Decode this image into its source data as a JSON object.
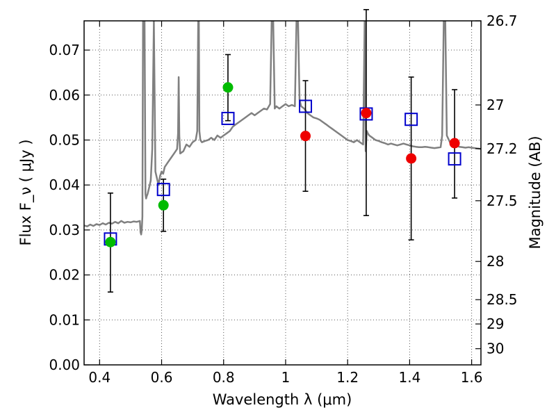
{
  "chart_data": {
    "type": "scatter",
    "title": "",
    "xlabel": "Wavelength  λ (μm)",
    "ylabel": "Flux  F_ν  ( μJy )",
    "ylabel_right": "Magnitude (AB)",
    "xlim": [
      0.35,
      1.63
    ],
    "ylim": [
      0.0,
      0.0765
    ],
    "grid": true,
    "x_ticks": [
      0.4,
      0.6,
      0.8,
      1.0,
      1.2,
      1.4,
      1.6
    ],
    "x_tick_labels": [
      "0.4",
      "0.6",
      "0.8",
      "1",
      "1.2",
      "1.4",
      "1.6"
    ],
    "y_ticks": [
      0.0,
      0.01,
      0.02,
      0.03,
      0.04,
      0.05,
      0.06,
      0.07
    ],
    "y_tick_labels": [
      "0.00",
      "0.01",
      "0.02",
      "0.03",
      "0.04",
      "0.05",
      "0.06",
      "0.07"
    ],
    "right_ticks": [
      {
        "label": "26.7",
        "flux": 0.0765
      },
      {
        "label": "27",
        "flux": 0.0578
      },
      {
        "label": "27.2",
        "flux": 0.0481
      },
      {
        "label": "27.5",
        "flux": 0.0365
      },
      {
        "label": "28",
        "flux": 0.023
      },
      {
        "label": "28.5",
        "flux": 0.0145
      },
      {
        "label": "29",
        "flux": 0.0091
      },
      {
        "label": "30",
        "flux": 0.0036
      }
    ],
    "colors": {
      "model": "#808080",
      "green": "#00bb00",
      "red": "#ee0000",
      "square": "#0000cc",
      "errorbar": "#000000",
      "grid": "#555555"
    },
    "series": [
      {
        "marker": "square",
        "color": "#0000cc",
        "points": [
          {
            "x": 0.435,
            "y": 0.028
          },
          {
            "x": 0.606,
            "y": 0.039
          },
          {
            "x": 0.814,
            "y": 0.0548
          },
          {
            "x": 1.064,
            "y": 0.0575
          },
          {
            "x": 1.26,
            "y": 0.0558
          },
          {
            "x": 1.405,
            "y": 0.0546
          },
          {
            "x": 1.545,
            "y": 0.0458
          }
        ]
      },
      {
        "marker": "circle",
        "color": "#00bb00",
        "points": [
          {
            "x": 0.435,
            "y": 0.0273,
            "err_low": 0.0162,
            "err_high": 0.0382
          },
          {
            "x": 0.606,
            "y": 0.0355,
            "err_low": 0.0297,
            "err_high": 0.0413
          },
          {
            "x": 0.814,
            "y": 0.0617,
            "err_low": 0.0543,
            "err_high": 0.069
          }
        ]
      },
      {
        "marker": "circle",
        "color": "#ee0000",
        "points": [
          {
            "x": 1.064,
            "y": 0.0509,
            "err_low": 0.0386,
            "err_high": 0.0632
          },
          {
            "x": 1.26,
            "y": 0.056,
            "err_low": 0.0332,
            "err_high": 0.079
          },
          {
            "x": 1.405,
            "y": 0.0459,
            "err_low": 0.0278,
            "err_high": 0.064
          },
          {
            "x": 1.545,
            "y": 0.0493,
            "err_low": 0.0371,
            "err_high": 0.0612
          }
        ]
      }
    ],
    "model_spectrum": {
      "color": "#808080",
      "x": [
        0.35,
        0.36,
        0.37,
        0.38,
        0.39,
        0.4,
        0.41,
        0.42,
        0.43,
        0.44,
        0.45,
        0.46,
        0.47,
        0.48,
        0.49,
        0.5,
        0.51,
        0.52,
        0.53,
        0.532,
        0.534,
        0.536,
        0.538,
        0.54,
        0.545,
        0.548,
        0.55,
        0.552,
        0.555,
        0.56,
        0.565,
        0.57,
        0.575,
        0.58,
        0.585,
        0.59,
        0.595,
        0.6,
        0.605,
        0.61,
        0.62,
        0.63,
        0.64,
        0.65,
        0.653,
        0.655,
        0.657,
        0.66,
        0.67,
        0.68,
        0.69,
        0.7,
        0.71,
        0.715,
        0.718,
        0.72,
        0.722,
        0.725,
        0.73,
        0.74,
        0.75,
        0.76,
        0.77,
        0.78,
        0.79,
        0.8,
        0.81,
        0.82,
        0.83,
        0.84,
        0.85,
        0.86,
        0.87,
        0.88,
        0.89,
        0.9,
        0.91,
        0.92,
        0.93,
        0.94,
        0.95,
        0.955,
        0.96,
        0.965,
        0.97,
        0.98,
        0.99,
        1.0,
        1.01,
        1.02,
        1.03,
        1.035,
        1.04,
        1.045,
        1.05,
        1.06,
        1.07,
        1.08,
        1.09,
        1.1,
        1.11,
        1.12,
        1.13,
        1.14,
        1.15,
        1.16,
        1.17,
        1.18,
        1.19,
        1.2,
        1.21,
        1.22,
        1.23,
        1.24,
        1.25,
        1.255,
        1.258,
        1.262,
        1.265,
        1.27,
        1.28,
        1.29,
        1.3,
        1.31,
        1.32,
        1.33,
        1.34,
        1.35,
        1.36,
        1.37,
        1.38,
        1.39,
        1.4,
        1.41,
        1.42,
        1.43,
        1.44,
        1.45,
        1.46,
        1.47,
        1.48,
        1.49,
        1.5,
        1.505,
        1.51,
        1.515,
        1.52,
        1.53,
        1.54,
        1.55,
        1.56,
        1.57,
        1.58,
        1.59,
        1.6,
        1.61,
        1.62,
        1.63
      ],
      "y": [
        0.031,
        0.0308,
        0.0312,
        0.0309,
        0.0313,
        0.0311,
        0.0315,
        0.0312,
        0.0316,
        0.0314,
        0.0318,
        0.0315,
        0.032,
        0.0316,
        0.0318,
        0.0317,
        0.0319,
        0.0318,
        0.032,
        0.0295,
        0.029,
        0.03,
        0.033,
        0.0765,
        0.0765,
        0.038,
        0.037,
        0.0375,
        0.038,
        0.0395,
        0.041,
        0.048,
        0.0765,
        0.043,
        0.0415,
        0.04,
        0.042,
        0.043,
        0.0425,
        0.044,
        0.045,
        0.046,
        0.047,
        0.048,
        0.0515,
        0.064,
        0.051,
        0.047,
        0.0475,
        0.049,
        0.0485,
        0.0495,
        0.05,
        0.052,
        0.0765,
        0.0765,
        0.052,
        0.05,
        0.0495,
        0.0498,
        0.05,
        0.0505,
        0.05,
        0.051,
        0.0505,
        0.051,
        0.0515,
        0.052,
        0.053,
        0.0535,
        0.054,
        0.0545,
        0.055,
        0.0555,
        0.056,
        0.0555,
        0.056,
        0.0565,
        0.057,
        0.0568,
        0.058,
        0.0765,
        0.0765,
        0.057,
        0.0575,
        0.057,
        0.0575,
        0.058,
        0.0575,
        0.0578,
        0.0575,
        0.0765,
        0.0765,
        0.059,
        0.0575,
        0.057,
        0.056,
        0.0555,
        0.055,
        0.0548,
        0.0545,
        0.054,
        0.0535,
        0.053,
        0.0525,
        0.052,
        0.0515,
        0.051,
        0.0505,
        0.05,
        0.0498,
        0.0495,
        0.05,
        0.0495,
        0.049,
        0.0765,
        0.0475,
        0.052,
        0.0515,
        0.051,
        0.0505,
        0.05,
        0.0498,
        0.0495,
        0.0493,
        0.049,
        0.0492,
        0.049,
        0.0488,
        0.049,
        0.0492,
        0.049,
        0.0488,
        0.0486,
        0.0485,
        0.0484,
        0.0484,
        0.0485,
        0.0484,
        0.0483,
        0.0482,
        0.0483,
        0.0484,
        0.051,
        0.0765,
        0.0765,
        0.051,
        0.0495,
        0.049,
        0.0488,
        0.0485,
        0.0484,
        0.0483,
        0.0484,
        0.0483,
        0.0482,
        0.0481,
        0.048
      ]
    }
  }
}
